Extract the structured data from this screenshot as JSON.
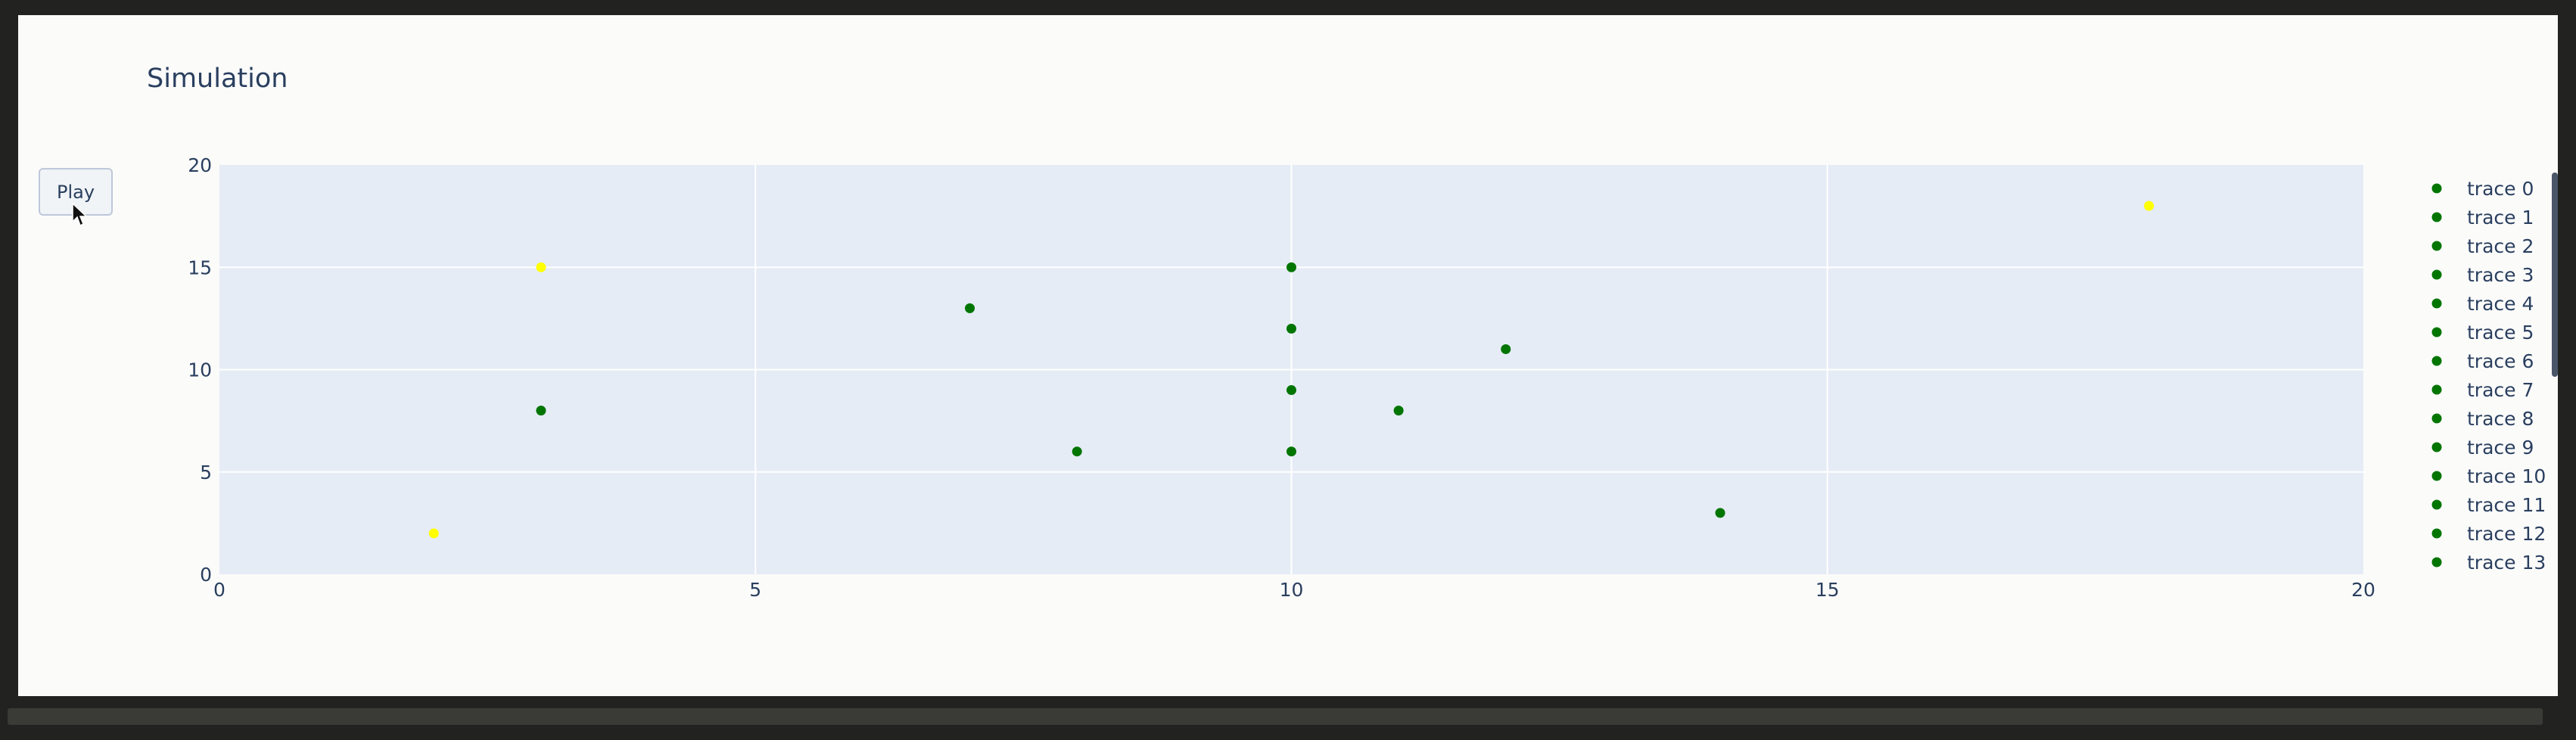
{
  "controls": {
    "play_label": "Play"
  },
  "chart_data": {
    "type": "scatter",
    "title": "Simulation",
    "xlabel": "",
    "ylabel": "",
    "xlim": [
      0,
      20
    ],
    "ylim": [
      0,
      20
    ],
    "x_ticks": [
      0,
      5,
      10,
      15,
      20
    ],
    "y_ticks": [
      0,
      5,
      10,
      15,
      20
    ],
    "grid": true,
    "legend_position": "right",
    "colors": {
      "plot_background": "#e5ecf6",
      "grid": "#ffffff",
      "text": "#2a3f5f"
    },
    "series": [
      {
        "name": "trace 0",
        "color": "#007500",
        "x": [
          3
        ],
        "y": [
          8
        ]
      },
      {
        "name": "trace 1",
        "color": "#007500",
        "x": [
          7
        ],
        "y": [
          13
        ]
      },
      {
        "name": "trace 2",
        "color": "#007500",
        "x": [
          8
        ],
        "y": [
          6
        ]
      },
      {
        "name": "trace 3",
        "color": "#007500",
        "x": [
          10
        ],
        "y": [
          15
        ]
      },
      {
        "name": "trace 4",
        "color": "#007500",
        "x": [
          10
        ],
        "y": [
          12
        ]
      },
      {
        "name": "trace 5",
        "color": "#007500",
        "x": [
          10
        ],
        "y": [
          9
        ]
      },
      {
        "name": "trace 6",
        "color": "#007500",
        "x": [
          10
        ],
        "y": [
          6
        ]
      },
      {
        "name": "trace 7",
        "color": "#007500",
        "x": [
          11
        ],
        "y": [
          8
        ]
      },
      {
        "name": "trace 8",
        "color": "#007500",
        "x": [
          12
        ],
        "y": [
          11
        ]
      },
      {
        "name": "trace 9",
        "color": "#007500",
        "x": [
          14
        ],
        "y": [
          3
        ]
      },
      {
        "name": "trace 10",
        "color": "#007500",
        "x": [],
        "y": []
      },
      {
        "name": "trace 11",
        "color": "#007500",
        "x": [],
        "y": []
      },
      {
        "name": "trace 12",
        "color": "#007500",
        "x": [],
        "y": []
      },
      {
        "name": "trace 13",
        "color": "#007500",
        "x": [],
        "y": []
      }
    ],
    "unlabeled_points": [
      {
        "x": 3,
        "y": 15,
        "color": "#ffff00"
      },
      {
        "x": 2,
        "y": 2,
        "color": "#ffff00"
      },
      {
        "x": 18,
        "y": 18,
        "color": "#ffff00"
      }
    ]
  }
}
